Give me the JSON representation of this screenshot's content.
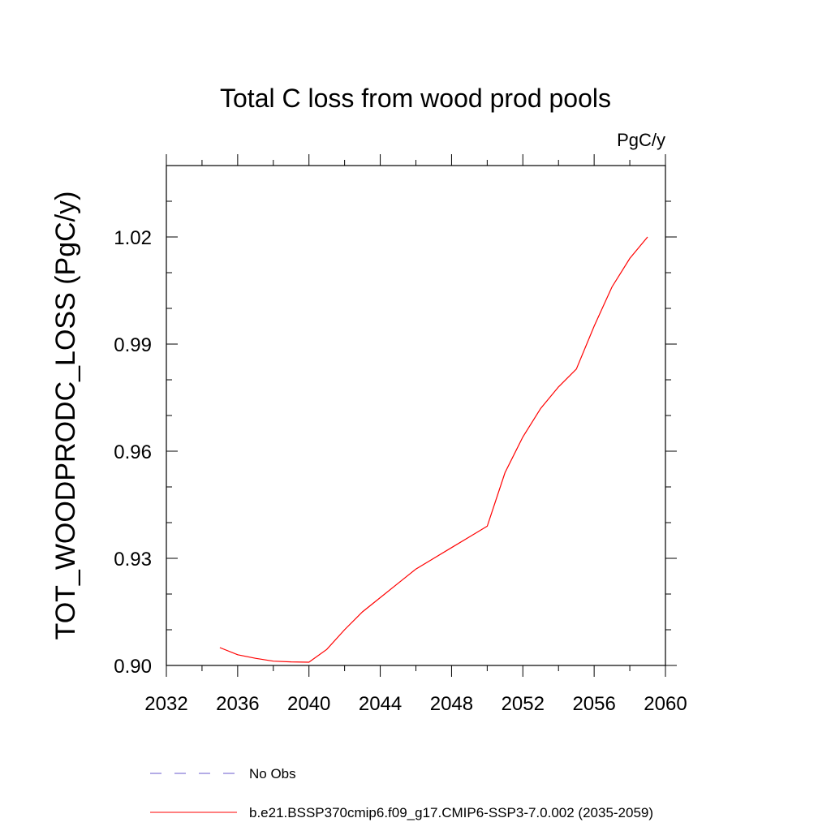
{
  "chart_data": {
    "type": "line",
    "title": "Total C loss from wood prod pools",
    "units_label": "PgC/y",
    "ylabel": "TOT_WOODPRODC_LOSS  (PgC/y)",
    "xlabel": "",
    "xlim": [
      2032,
      2060
    ],
    "ylim": [
      0.9,
      1.04
    ],
    "x_ticks": [
      2032,
      2036,
      2040,
      2044,
      2048,
      2052,
      2056,
      2060
    ],
    "x_tick_labels": [
      "2032",
      "2036",
      "2040",
      "2044",
      "2048",
      "2052",
      "2056",
      "2060"
    ],
    "y_ticks": [
      0.9,
      0.93,
      0.96,
      0.99,
      1.02
    ],
    "y_tick_labels": [
      "0.90",
      "0.93",
      "0.96",
      "0.99",
      "1.02"
    ],
    "y_minor_step": 0.01,
    "x_minor_step": 2,
    "grid": false,
    "legend_position": "bottom",
    "series": [
      {
        "name": "b.e21.BSSP370cmip6.f09_g17.CMIP6-SSP3-7.0.002 (2035-2059)",
        "color": "#ff0000",
        "style": "solid",
        "x": [
          2035,
          2036,
          2037,
          2038,
          2039,
          2040,
          2041,
          2042,
          2043,
          2044,
          2045,
          2046,
          2047,
          2048,
          2049,
          2050,
          2051,
          2052,
          2053,
          2054,
          2055,
          2056,
          2057,
          2058,
          2059
        ],
        "y": [
          0.905,
          0.903,
          0.902,
          0.9012,
          0.901,
          0.9009,
          0.9045,
          0.91,
          0.915,
          0.919,
          0.923,
          0.927,
          0.93,
          0.933,
          0.936,
          0.939,
          0.954,
          0.964,
          0.972,
          0.978,
          0.983,
          0.995,
          1.006,
          1.014,
          1.02
        ]
      }
    ],
    "legend": [
      {
        "label": "No Obs",
        "color": "#6a5acd",
        "style": "dashed"
      },
      {
        "label": "b.e21.BSSP370cmip6.f09_g17.CMIP6-SSP3-7.0.002 (2035-2059)",
        "color": "#ff0000",
        "style": "solid"
      }
    ]
  }
}
